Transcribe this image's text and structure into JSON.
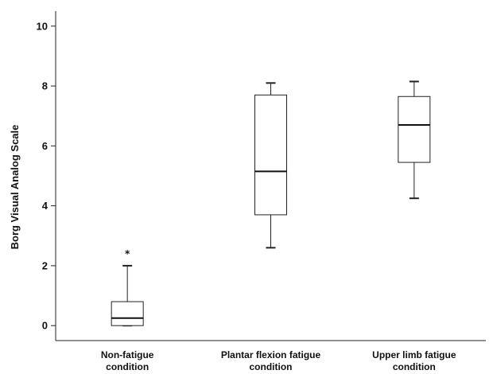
{
  "chart_data": {
    "type": "boxplot",
    "title": "",
    "xlabel": "",
    "ylabel": "Borg Visual Analog Scale",
    "ylim": [
      -0.5,
      10.5
    ],
    "yticks": [
      0,
      2,
      4,
      6,
      8,
      10
    ],
    "grid": false,
    "categories": [
      [
        "Non-fatigue",
        "condition"
      ],
      [
        "Plantar flexion fatigue",
        "condition"
      ],
      [
        "Upper limb fatigue",
        "condition"
      ]
    ],
    "boxes": [
      {
        "whisker_low": 0.0,
        "q1": 0.0,
        "median": 0.25,
        "q3": 0.8,
        "whisker_high": 2.0,
        "outliers": [
          2.5
        ],
        "outlier_symbol": "*"
      },
      {
        "whisker_low": 2.6,
        "q1": 3.7,
        "median": 5.15,
        "q3": 7.7,
        "whisker_high": 8.1,
        "outliers": [],
        "outlier_symbol": "*"
      },
      {
        "whisker_low": 4.25,
        "q1": 5.45,
        "median": 6.7,
        "q3": 7.65,
        "whisker_high": 8.15,
        "outliers": [],
        "outlier_symbol": "*"
      }
    ]
  }
}
